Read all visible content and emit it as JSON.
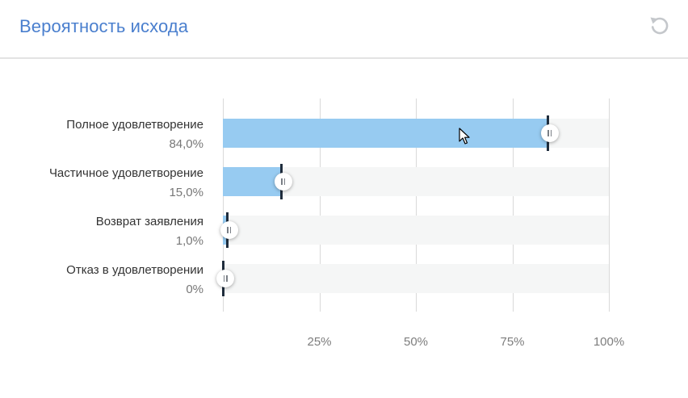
{
  "header": {
    "title": "Вероятность исхода",
    "reset_icon": "reset-icon"
  },
  "chart_data": {
    "type": "bar",
    "categories": [
      "Полное удовлетворение",
      "Частичное удовлетворение",
      "Возврат заявления",
      "Отказ в удовлетворении"
    ],
    "values": [
      84.0,
      15.0,
      1.0,
      0
    ],
    "value_labels": [
      "84,0%",
      "15,0%",
      "1,0%",
      "0%"
    ],
    "xlim": [
      0,
      100
    ],
    "tick_labels": [
      "25%",
      "50%",
      "75%",
      "100%"
    ],
    "tick_values": [
      25,
      50,
      75,
      100
    ],
    "bar_color": "#97cbf1",
    "track_color": "#f5f6f6",
    "marker_color": "#1f2d3d"
  },
  "accent_color": "#4a7fce"
}
